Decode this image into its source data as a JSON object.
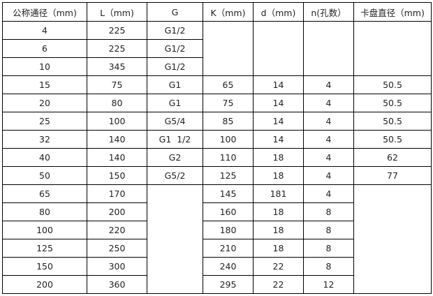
{
  "headers": [
    "公称通径（mm)",
    "L（mm)",
    "G",
    "K（mm)",
    "d（mm)",
    "n(孔数）",
    "卡盘直径（mm)"
  ],
  "rows": [
    [
      "4",
      "225",
      "G1/2",
      "",
      "",
      "",
      ""
    ],
    [
      "6",
      "225",
      "G1/2",
      "",
      "",
      "",
      ""
    ],
    [
      "10",
      "345",
      "G1/2",
      "",
      "",
      "",
      ""
    ],
    [
      "15",
      "75",
      "G1",
      "65",
      "14",
      "4",
      "50.5"
    ],
    [
      "20",
      "80",
      "G1",
      "75",
      "14",
      "4",
      "50.5"
    ],
    [
      "25",
      "100",
      "G5/4",
      "85",
      "14",
      "4",
      "50.5"
    ],
    [
      "32",
      "140",
      "G1  1/2",
      "100",
      "14",
      "4",
      "50.5"
    ],
    [
      "40",
      "140",
      "G2",
      "110",
      "18",
      "4",
      "62"
    ],
    [
      "50",
      "150",
      "G5/2",
      "125",
      "18",
      "4",
      "77"
    ],
    [
      "65",
      "170",
      "",
      "145",
      "181",
      "4",
      ""
    ],
    [
      "80",
      "200",
      "",
      "160",
      "18",
      "8",
      ""
    ],
    [
      "100",
      "220",
      "",
      "180",
      "18",
      "8",
      ""
    ],
    [
      "125",
      "250",
      "",
      "210",
      "18",
      "8",
      ""
    ],
    [
      "150",
      "300",
      "",
      "240",
      "22",
      "8",
      ""
    ],
    [
      "200",
      "360",
      "",
      "295",
      "22",
      "12",
      ""
    ]
  ]
}
